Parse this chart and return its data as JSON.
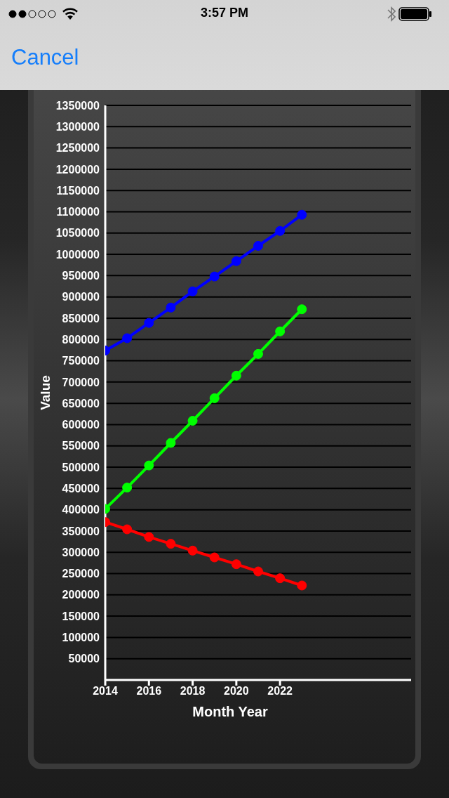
{
  "chart_data": {
    "type": "line",
    "xlabel": "Month Year",
    "ylabel": "Value",
    "annotations": [
      "3:57 PM",
      "Cancel"
    ],
    "x": [
      2014,
      2015,
      2016,
      2017,
      2018,
      2019,
      2020,
      2021,
      2022,
      2023
    ],
    "series": [
      {
        "color": "#0000ff",
        "values": [
          774000,
          803000,
          839000,
          875000,
          913000,
          948000,
          984000,
          1020000,
          1055000,
          1093000
        ]
      },
      {
        "color": "#00ff00",
        "values": [
          402000,
          452000,
          504000,
          557000,
          609000,
          662000,
          715000,
          766000,
          819000,
          871000
        ]
      },
      {
        "color": "#ff0000",
        "values": [
          371000,
          354000,
          336000,
          320000,
          304000,
          288000,
          272000,
          255000,
          239000,
          222000
        ]
      }
    ],
    "xlim": [
      2014,
      2028
    ],
    "ylim": [
      0,
      1350000
    ],
    "xticks": [
      2014,
      2016,
      2018,
      2020,
      2022
    ],
    "yticks": [
      50000,
      100000,
      150000,
      200000,
      250000,
      300000,
      350000,
      400000,
      450000,
      500000,
      550000,
      600000,
      650000,
      700000,
      750000,
      800000,
      850000,
      900000,
      950000,
      1000000,
      1050000,
      1100000,
      1150000,
      1200000,
      1250000,
      1300000,
      1350000
    ],
    "grid": "y",
    "marker": "circle",
    "line_style": "solid"
  }
}
